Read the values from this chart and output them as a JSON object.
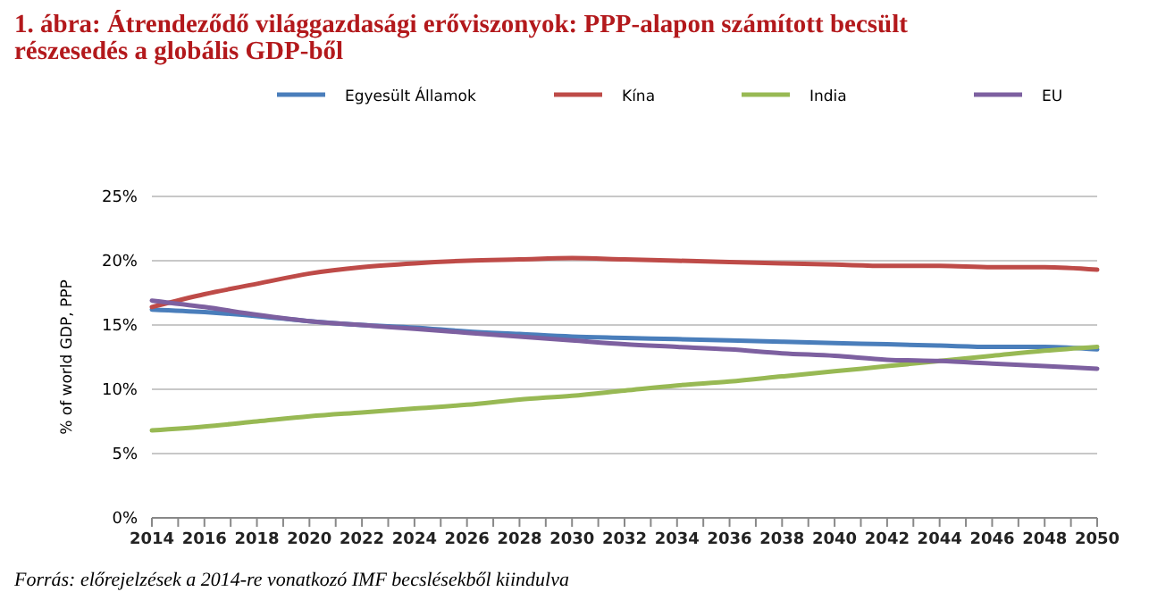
{
  "chart_data": {
    "type": "line",
    "title": "1. ábra: Átrendeződő világgazdasági erőviszonyok: PPP-alapon számított becsült részesedés a globális GDP-ből",
    "ylabel": "% of world GDP, PPP",
    "annotations": [
      "Forrás: előrejelzések a 2014-re vonatkozó IMF becslésekből kiindulva"
    ],
    "x": [
      2014,
      2016,
      2018,
      2020,
      2022,
      2024,
      2026,
      2028,
      2030,
      2032,
      2034,
      2036,
      2038,
      2040,
      2042,
      2044,
      2046,
      2048,
      2050
    ],
    "series": [
      {
        "name": "Egyesült Államok",
        "color": "#4a7ebb",
        "values": [
          16.2,
          16.0,
          15.7,
          15.3,
          15.0,
          14.8,
          14.5,
          14.3,
          14.1,
          14.0,
          13.9,
          13.8,
          13.7,
          13.6,
          13.5,
          13.4,
          13.3,
          13.3,
          13.1
        ]
      },
      {
        "name": "Kína",
        "color": "#be4b48",
        "values": [
          16.4,
          17.4,
          18.2,
          19.0,
          19.5,
          19.8,
          20.0,
          20.1,
          20.2,
          20.1,
          20.0,
          19.9,
          19.8,
          19.7,
          19.6,
          19.6,
          19.5,
          19.5,
          19.3
        ]
      },
      {
        "name": "India",
        "color": "#98b954",
        "values": [
          6.8,
          7.1,
          7.5,
          7.9,
          8.2,
          8.5,
          8.8,
          9.2,
          9.5,
          9.9,
          10.3,
          10.6,
          11.0,
          11.4,
          11.8,
          12.2,
          12.6,
          13.0,
          13.3
        ]
      },
      {
        "name": "EU",
        "color": "#7d60a0",
        "values": [
          16.9,
          16.4,
          15.8,
          15.3,
          15.0,
          14.7,
          14.4,
          14.1,
          13.8,
          13.5,
          13.3,
          13.1,
          12.8,
          12.6,
          12.3,
          12.2,
          12.0,
          11.8,
          11.6
        ]
      }
    ],
    "xlim": [
      2014,
      2050
    ],
    "xticks": [
      2014,
      {
        "value": 2015,
        "label": null
      },
      2016,
      {
        "value": 2017,
        "label": null
      },
      2018,
      {
        "value": 2019,
        "label": null
      },
      2020,
      {
        "value": 2021,
        "label": null
      },
      2022,
      {
        "value": 2023,
        "label": null
      },
      2024,
      {
        "value": 2025,
        "label": null
      },
      2026,
      {
        "value": 2027,
        "label": null
      },
      2028,
      {
        "value": 2029,
        "label": null
      },
      2030,
      {
        "value": 2031,
        "label": null
      },
      2032,
      {
        "value": 2033,
        "label": null
      },
      2034,
      {
        "value": 2035,
        "label": null
      },
      2036,
      {
        "value": 2037,
        "label": null
      },
      2038,
      {
        "value": 2039,
        "label": null
      },
      2040,
      {
        "value": 2041,
        "label": null
      },
      2042,
      {
        "value": 2043,
        "label": null
      },
      2044,
      {
        "value": 2045,
        "label": null
      },
      2046,
      {
        "value": 2047,
        "label": null
      },
      2048,
      {
        "value": 2049,
        "label": null
      },
      2050
    ],
    "ylim": [
      0,
      25
    ],
    "yticks": [
      {
        "value": 0,
        "label": "0%"
      },
      {
        "value": 5,
        "label": "5%"
      },
      {
        "value": 10,
        "label": "10%"
      },
      {
        "value": 15,
        "label": "15%"
      },
      {
        "value": 20,
        "label": "20%"
      },
      {
        "value": 25,
        "label": "25%"
      }
    ],
    "grid": "y",
    "legend": "top",
    "marker": "none",
    "line_style": "solid"
  }
}
